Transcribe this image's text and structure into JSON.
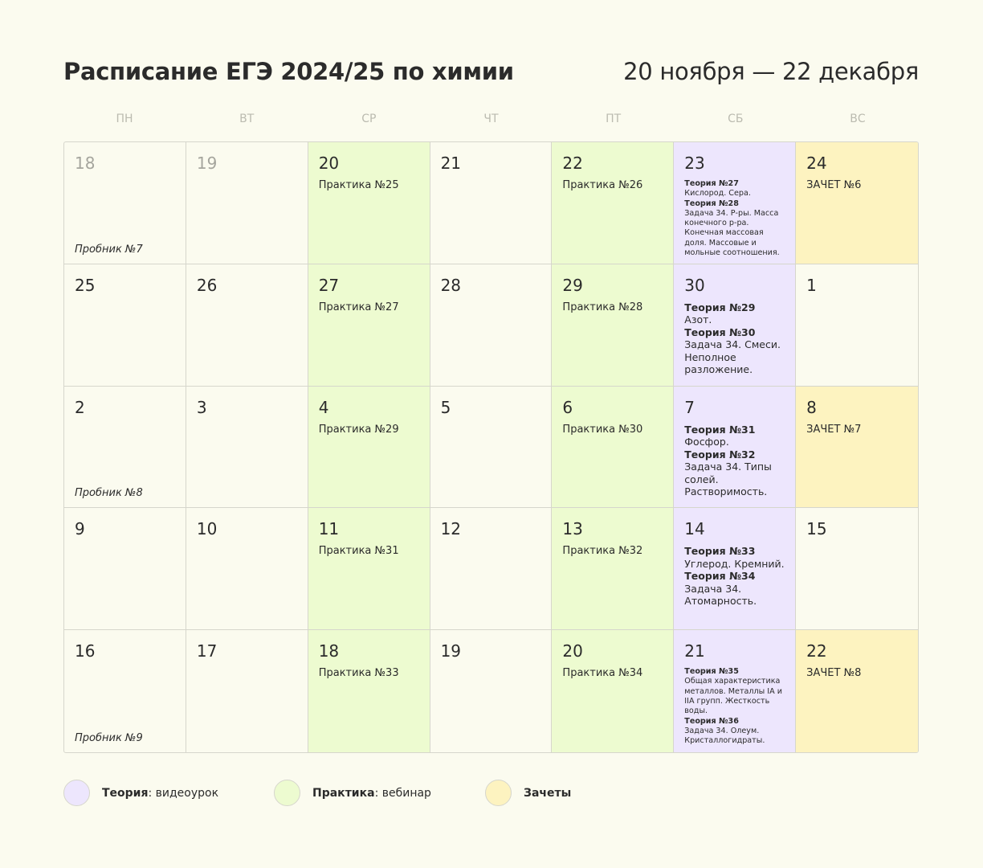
{
  "header": {
    "title": "Расписание ЕГЭ 2024/25 по химии",
    "range": "20 ноября — 22 декабря"
  },
  "weekdays": [
    "ПН",
    "ВТ",
    "СР",
    "ЧТ",
    "ПТ",
    "СБ",
    "ВС"
  ],
  "weeks": [
    [
      {
        "day": 18,
        "muted": true,
        "note": "Пробник №7"
      },
      {
        "day": 19,
        "muted": true
      },
      {
        "day": 20,
        "color": "#edfbd0",
        "text": "Практика №25"
      },
      {
        "day": 21
      },
      {
        "day": 22,
        "color": "#edfbd0",
        "text": "Практика №26"
      },
      {
        "day": 23,
        "color": "#ede6fd",
        "entries": [
          {
            "title": "Теория №27",
            "text": "Кислород. Сера."
          },
          {
            "title": "Теория №28",
            "text": "Задача 34. Р-ры. Масса конечного р-ра. Конечная массовая доля. Массовые и мольные соотношения."
          }
        ]
      },
      {
        "day": 24,
        "color": "#fdf3c0",
        "text": "ЗАЧЕТ №6"
      }
    ],
    [
      {
        "day": 25
      },
      {
        "day": 26
      },
      {
        "day": 27,
        "color": "#edfbd0",
        "text": "Практика №27"
      },
      {
        "day": 28
      },
      {
        "day": 29,
        "color": "#edfbd0",
        "text": "Практика №28"
      },
      {
        "day": 30,
        "color": "#ede6fd",
        "entries": [
          {
            "title": "Теория №29",
            "text": "Азот."
          },
          {
            "title": "Теория №30",
            "text": "Задача 34. Смеси. Неполное разложение."
          }
        ]
      },
      {
        "day": 1
      }
    ],
    [
      {
        "day": 2,
        "note": "Пробник №8"
      },
      {
        "day": 3
      },
      {
        "day": 4,
        "color": "#edfbd0",
        "text": "Практика №29"
      },
      {
        "day": 5
      },
      {
        "day": 6,
        "color": "#edfbd0",
        "text": "Практика №30"
      },
      {
        "day": 7,
        "color": "#ede6fd",
        "entries": [
          {
            "title": "Теория №31",
            "text": "Фосфор."
          },
          {
            "title": "Теория №32",
            "text": "Задача 34. Типы солей. Растворимость."
          }
        ]
      },
      {
        "day": 8,
        "color": "#fdf3c0",
        "text": "ЗАЧЕТ №7"
      }
    ],
    [
      {
        "day": 9
      },
      {
        "day": 10
      },
      {
        "day": 11,
        "color": "#edfbd0",
        "text": "Практика №31"
      },
      {
        "day": 12
      },
      {
        "day": 13,
        "color": "#edfbd0",
        "text": "Практика №32"
      },
      {
        "day": 14,
        "color": "#ede6fd",
        "entries": [
          {
            "title": "Теория №33",
            "text": "Углерод. Кремний."
          },
          {
            "title": "Теория №34",
            "text": "Задача 34. Атомарность."
          }
        ]
      },
      {
        "day": 15
      }
    ],
    [
      {
        "day": 16,
        "note": "Пробник №9"
      },
      {
        "day": 17
      },
      {
        "day": 18,
        "color": "#edfbd0",
        "text": "Практика №33"
      },
      {
        "day": 19
      },
      {
        "day": 20,
        "color": "#edfbd0",
        "text": "Практика №34"
      },
      {
        "day": 21,
        "color": "#ede6fd",
        "entries": [
          {
            "title": "Теория №35",
            "text": "Общая характеристика металлов. Металлы IA и IIA групп. Жесткость воды."
          },
          {
            "title": "Теория №36",
            "text": "Задача 34. Олеум. Кристаллогидраты."
          }
        ]
      },
      {
        "day": 22,
        "color": "#fdf3c0",
        "text": "ЗАЧЕТ №8"
      }
    ]
  ],
  "legend": [
    {
      "label": "Теория",
      "text": ": видеоурок",
      "color": "#ede6fd"
    },
    {
      "label": "Практика",
      "text": ": вебинар",
      "color": "#edfbd0"
    },
    {
      "label": "Зачеты",
      "color": "#fdf3c0"
    }
  ]
}
